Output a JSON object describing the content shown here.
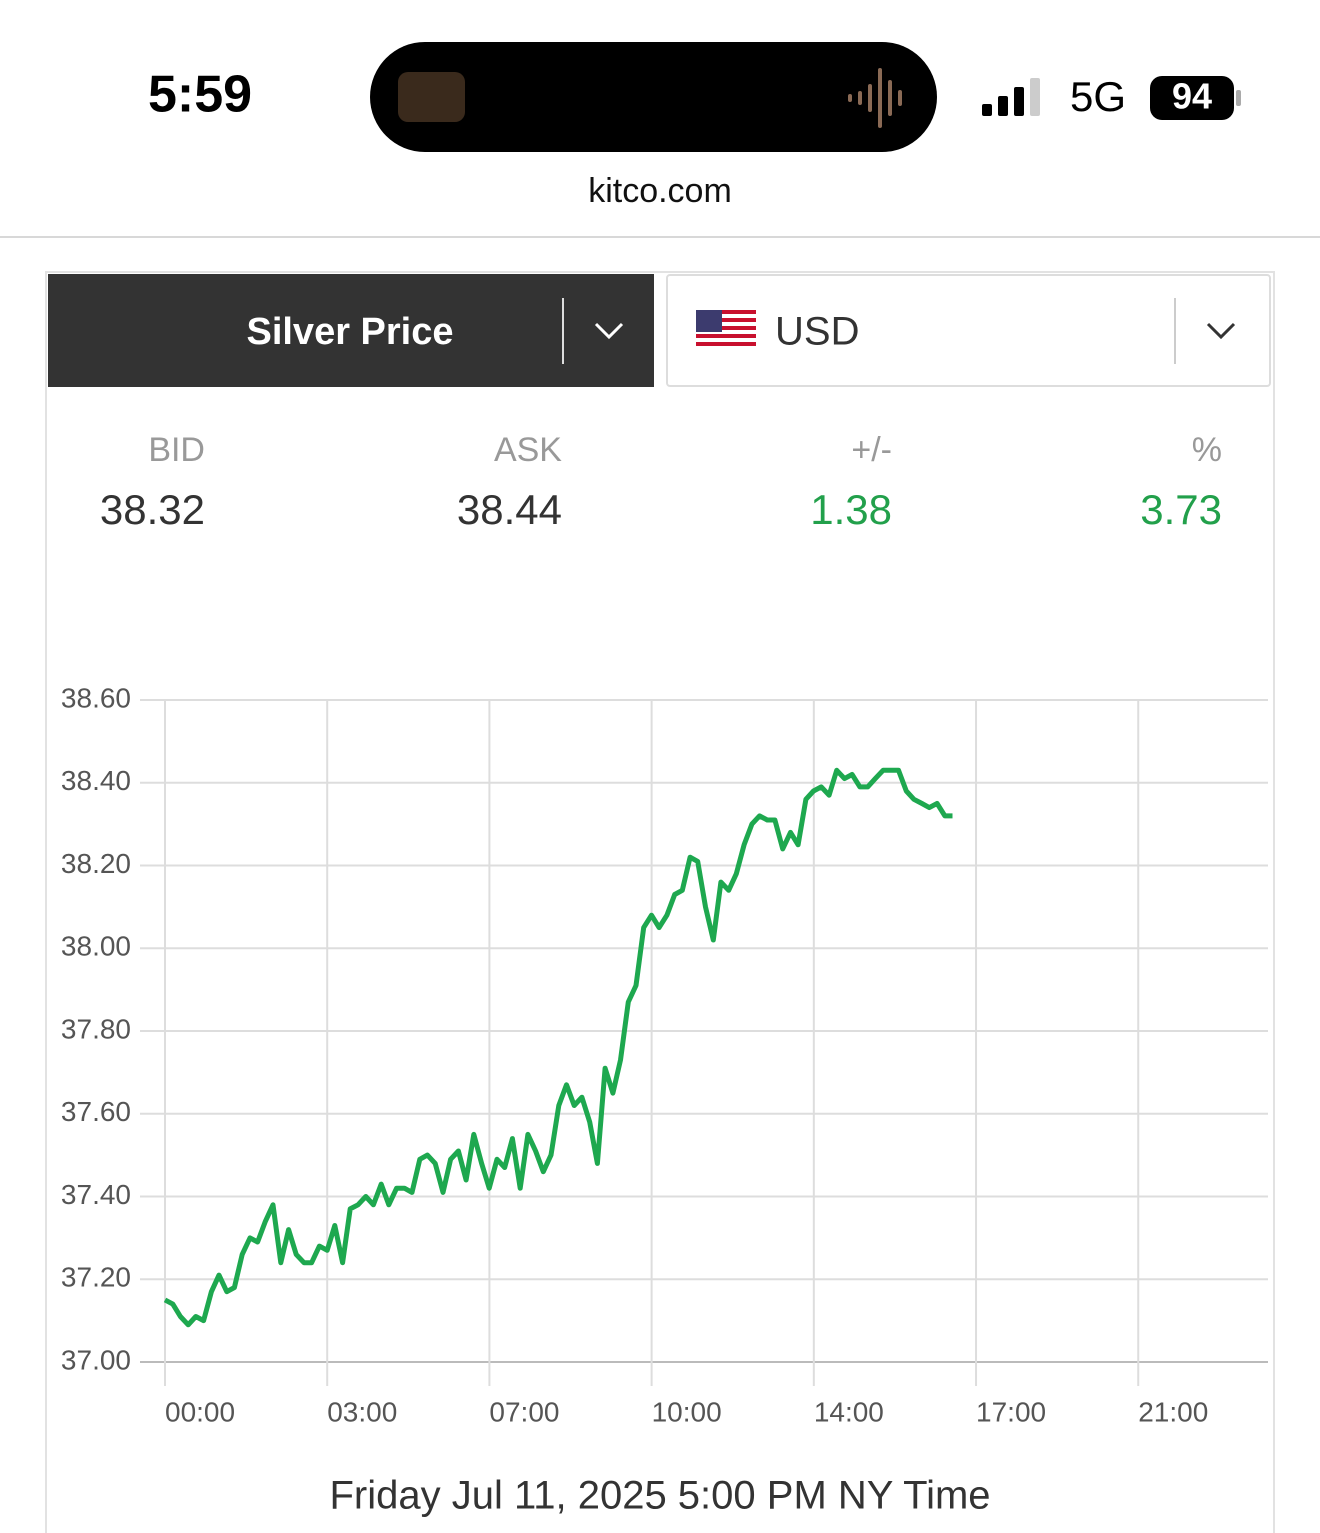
{
  "status_bar": {
    "time": "5:59",
    "network": "5G",
    "battery": "94"
  },
  "browser": {
    "url": "kitco.com"
  },
  "selector": {
    "metal": "Silver Price",
    "currency": "USD"
  },
  "quote": {
    "headers": [
      "BID",
      "ASK",
      "+/-",
      "%"
    ],
    "values": [
      "38.32",
      "38.44",
      "1.38",
      "3.73"
    ]
  },
  "chart_data": {
    "type": "line",
    "x": [
      0,
      0.048,
      0.095,
      0.143,
      0.19,
      0.238,
      0.286,
      0.333,
      0.381,
      0.428,
      0.476,
      0.524,
      0.571,
      0.619,
      0.666,
      0.714,
      0.762,
      0.809,
      0.857,
      0.904,
      0.952,
      1.0,
      1.047,
      1.095,
      1.142,
      1.19,
      1.238,
      1.285,
      1.333,
      1.38,
      1.428,
      1.476,
      1.523,
      1.571,
      1.618,
      1.666,
      1.714,
      1.761,
      1.809,
      1.856,
      1.904,
      1.952,
      1.999,
      2.047,
      2.094,
      2.142,
      2.19,
      2.237,
      2.285,
      2.332,
      2.38,
      2.428,
      2.475,
      2.523,
      2.57,
      2.618,
      2.666,
      2.713,
      2.761,
      2.808,
      2.856,
      2.904,
      2.951,
      2.999,
      3.046,
      3.094,
      3.142,
      3.189,
      3.237,
      3.284,
      3.332,
      3.38,
      3.427,
      3.475,
      3.522,
      3.57,
      3.618,
      3.665,
      3.713,
      3.76,
      3.808,
      3.856,
      3.903,
      3.951,
      3.998,
      4.046,
      4.094,
      4.141,
      4.189,
      4.236,
      4.284,
      4.332,
      4.379,
      4.427,
      4.474,
      4.522,
      4.57,
      4.617,
      4.665,
      4.712,
      4.76,
      4.808,
      4.855
    ],
    "series": [
      {
        "color": "#1ea84f",
        "values": [
          37.15,
          37.14,
          37.11,
          37.09,
          37.11,
          37.1,
          37.17,
          37.21,
          37.17,
          37.18,
          37.26,
          37.3,
          37.29,
          37.34,
          37.38,
          37.24,
          37.32,
          37.26,
          37.24,
          37.24,
          37.28,
          37.27,
          37.33,
          37.24,
          37.37,
          37.38,
          37.4,
          37.38,
          37.43,
          37.38,
          37.42,
          37.42,
          37.41,
          37.49,
          37.5,
          37.48,
          37.41,
          37.49,
          37.51,
          37.44,
          37.55,
          37.48,
          37.42,
          37.49,
          37.47,
          37.54,
          37.42,
          37.55,
          37.51,
          37.46,
          37.5,
          37.62,
          37.67,
          37.62,
          37.64,
          37.58,
          37.48,
          37.71,
          37.65,
          37.73,
          37.87,
          37.91,
          38.05,
          38.08,
          38.05,
          38.08,
          38.13,
          38.14,
          38.22,
          38.21,
          38.1,
          38.02,
          38.16,
          38.14,
          38.18,
          38.25,
          38.3,
          38.32,
          38.31,
          38.31,
          38.24,
          38.28,
          38.25,
          38.36,
          38.38,
          38.39,
          38.37,
          38.43,
          38.41,
          38.42,
          38.39,
          38.39,
          38.41,
          38.43,
          38.43,
          38.43,
          38.38,
          38.36,
          38.35,
          38.34,
          38.35,
          38.32,
          38.32
        ]
      }
    ],
    "xlim": [
      0,
      6.8
    ],
    "xticks": [
      {
        "value": 0,
        "label": "00:00"
      },
      {
        "value": 1,
        "label": "03:00"
      },
      {
        "value": 2,
        "label": "07:00"
      },
      {
        "value": 3,
        "label": "10:00"
      },
      {
        "value": 4,
        "label": "14:00"
      },
      {
        "value": 5,
        "label": "17:00"
      },
      {
        "value": 6,
        "label": "21:00"
      }
    ],
    "ylim": [
      37,
      38.6
    ],
    "yticks": [
      {
        "value": 37,
        "label": "37.00"
      },
      {
        "value": 37.2,
        "label": "37.20"
      },
      {
        "value": 37.4,
        "label": "37.40"
      },
      {
        "value": 37.6,
        "label": "37.60"
      },
      {
        "value": 37.8,
        "label": "37.80"
      },
      {
        "value": 38,
        "label": "38.00"
      },
      {
        "value": 38.2,
        "label": "38.20"
      },
      {
        "value": 38.4,
        "label": "38.40"
      },
      {
        "value": 38.6,
        "label": "38.60"
      }
    ],
    "grid": true
  },
  "footer": {
    "timestamp": "Friday Jul 11, 2025 5:00 PM NY Time"
  }
}
